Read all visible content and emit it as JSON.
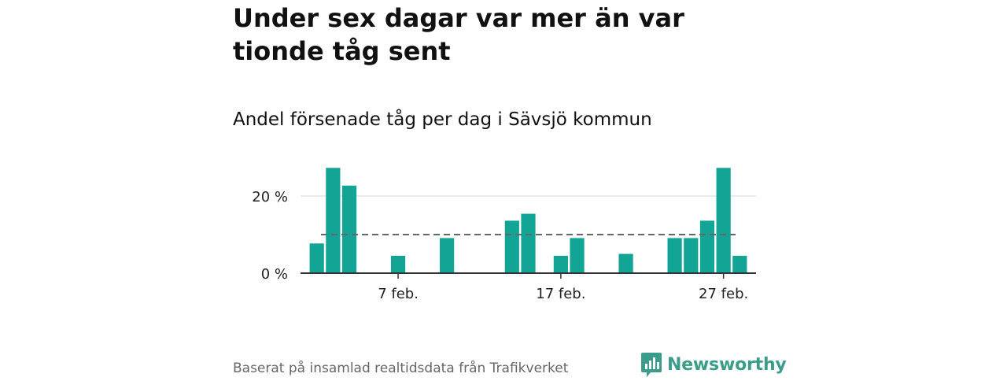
{
  "title": "Under sex dagar var mer än var tionde tåg sent",
  "subtitle": "Andel försenade tåg per dag i Sävsjö kommun",
  "footer": {
    "source": "Baserat på insamlad realtidsdata från Trafikverket",
    "brand": "Newsworthy"
  },
  "colors": {
    "bar": "#12a596",
    "reference_line": "#666666",
    "brand": "#3c9c8c"
  },
  "chart_data": {
    "type": "bar",
    "title": "",
    "xlabel": "",
    "ylabel": "",
    "x_tick_labels": [
      {
        "day": 7,
        "label": "7 feb."
      },
      {
        "day": 17,
        "label": "17 feb."
      },
      {
        "day": 27,
        "label": "27 feb."
      }
    ],
    "y_tick_labels": [
      {
        "value": 0,
        "label": "0 %"
      },
      {
        "value": 20,
        "label": "20 %"
      }
    ],
    "ylim": [
      0,
      30
    ],
    "xlim": [
      1,
      29
    ],
    "reference_line": 10,
    "grid": true,
    "series": [
      {
        "x": [
          2,
          3,
          4,
          7,
          10,
          14,
          15,
          17,
          18,
          21,
          24,
          25,
          26,
          27,
          28
        ],
        "values": [
          7.7,
          27.3,
          22.7,
          4.5,
          9.1,
          13.6,
          15.4,
          4.5,
          9.1,
          5,
          9.1,
          9.1,
          13.6,
          27.3,
          4.5
        ]
      }
    ]
  }
}
